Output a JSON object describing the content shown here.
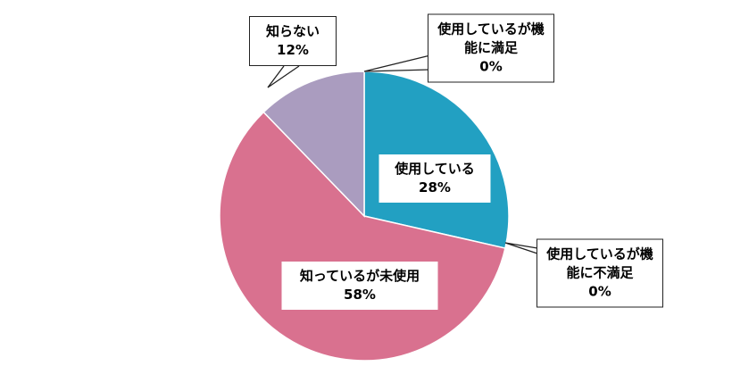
{
  "chart_data": {
    "type": "pie",
    "categories": [
      "使用している",
      "使用しているが機能に不満足",
      "知っているが未使用",
      "知らない",
      "使用しているが機能に満足"
    ],
    "values": [
      28,
      0,
      58,
      12,
      0
    ],
    "value_labels": [
      "28%",
      "0%",
      "58%",
      "12%",
      "0%"
    ],
    "colors": [
      "#22a0c2",
      "#3a86c8",
      "#d9718f",
      "#aa9cbf",
      "#2f7bbf"
    ]
  }
}
